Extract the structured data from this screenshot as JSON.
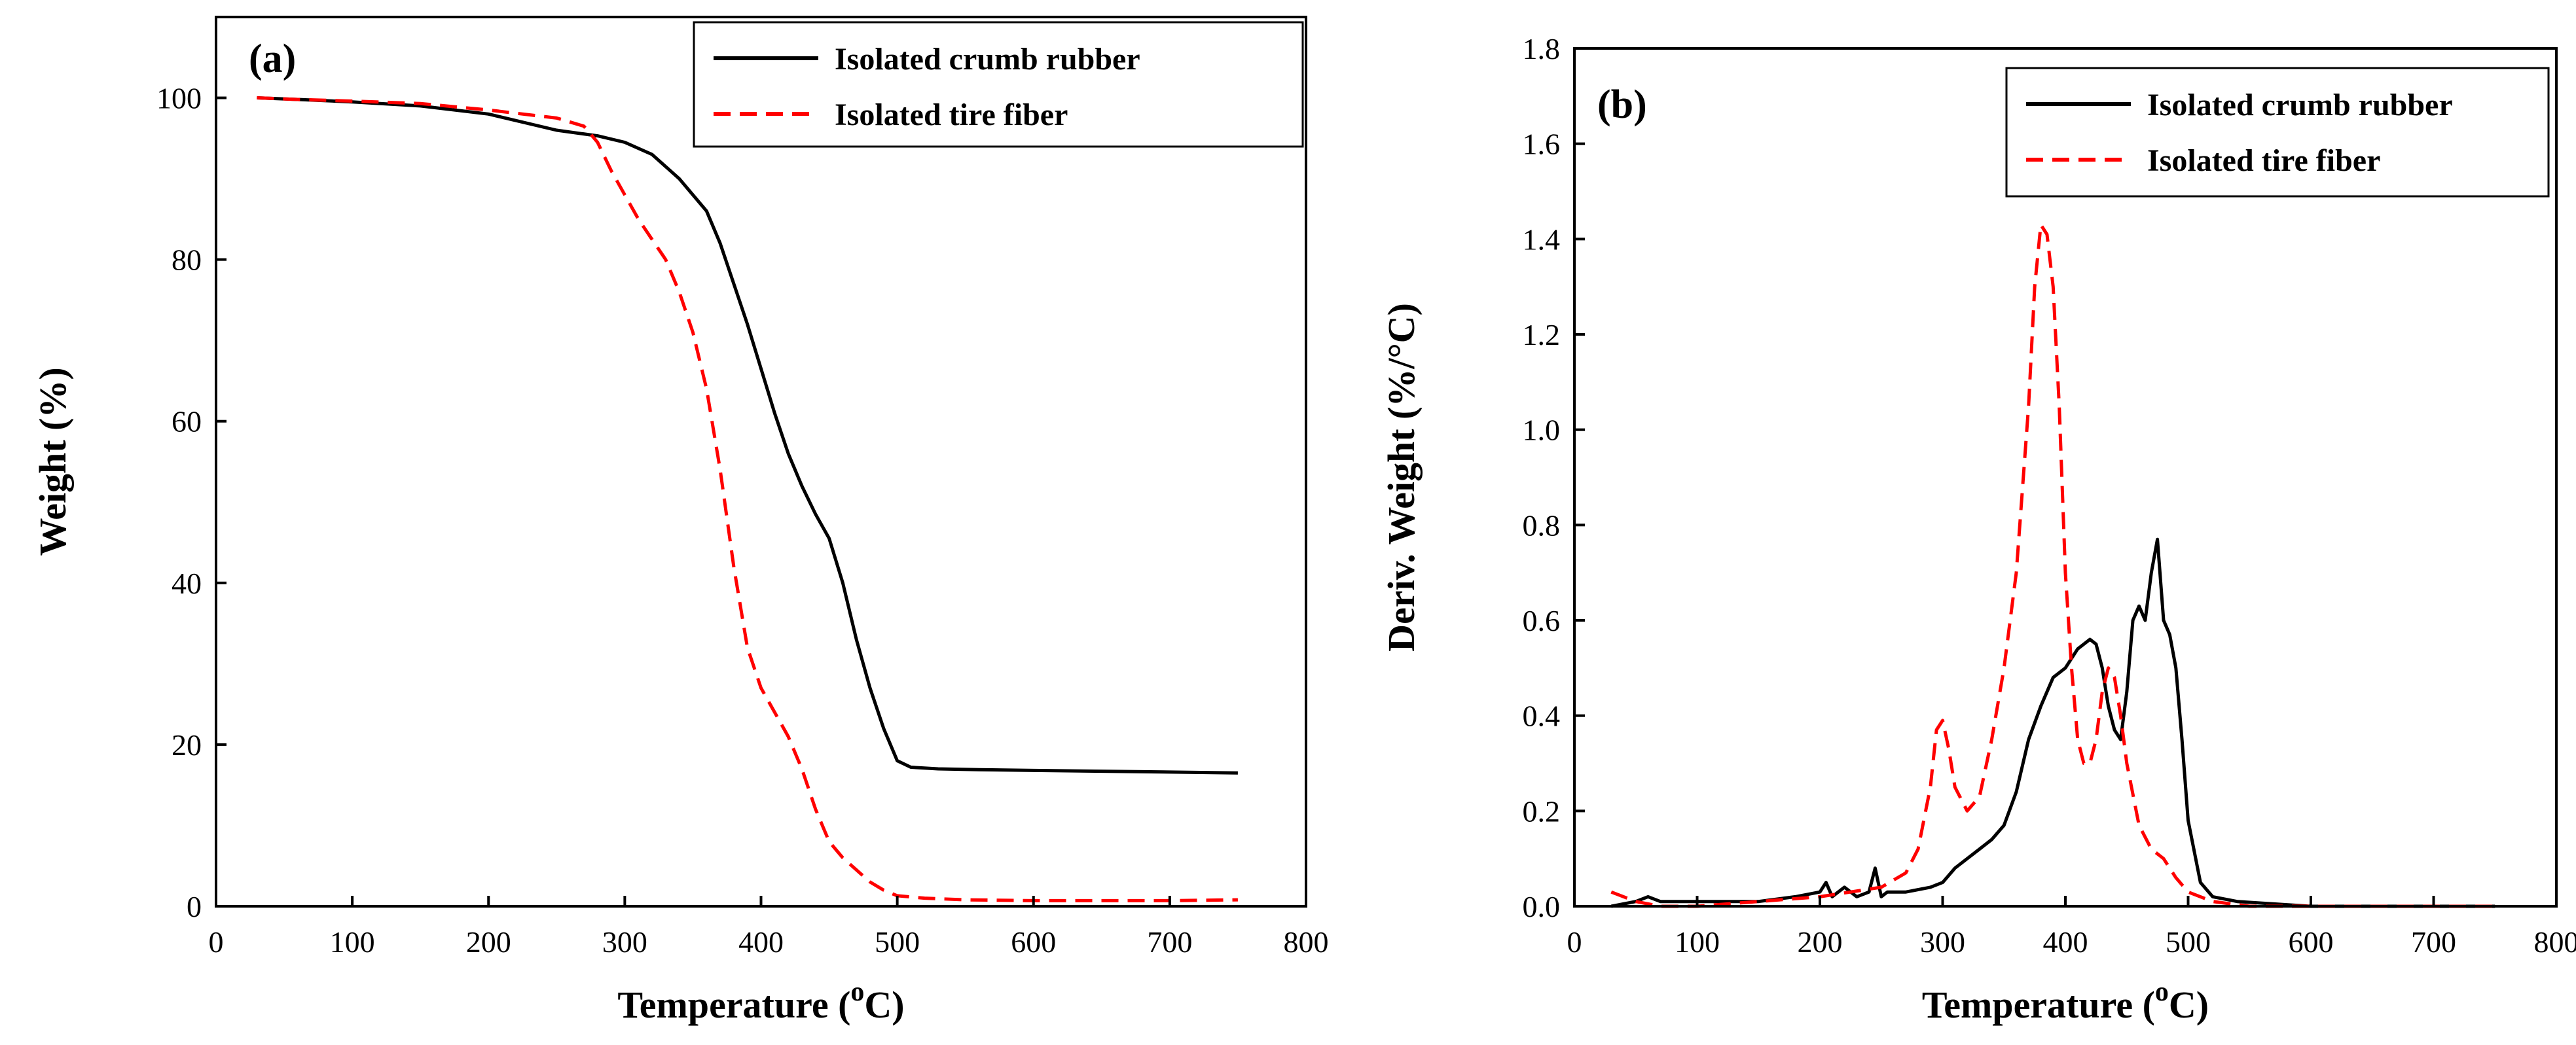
{
  "chart_data": [
    {
      "type": "line",
      "panel_label": "(a)",
      "xlabel_main": "Temperature (",
      "xlabel_sup": "o",
      "xlabel_end": "C)",
      "ylabel": "Weight (%)",
      "xlim": [
        0,
        800
      ],
      "ylim": [
        0,
        110
      ],
      "xticks": [
        0,
        100,
        200,
        300,
        400,
        500,
        600,
        700,
        800
      ],
      "yticks": [
        0,
        20,
        40,
        60,
        80,
        100
      ],
      "legend_position": "top-right",
      "series": [
        {
          "name": "Isolated crumb rubber",
          "color": "#000000",
          "style": "solid",
          "x": [
            30,
            60,
            100,
            150,
            200,
            250,
            280,
            300,
            320,
            340,
            360,
            370,
            380,
            390,
            400,
            410,
            420,
            430,
            440,
            450,
            460,
            470,
            480,
            490,
            500,
            510,
            530,
            560,
            600,
            700,
            750
          ],
          "y": [
            100,
            99.8,
            99.5,
            99,
            98,
            96,
            95.3,
            94.5,
            93,
            90,
            86,
            82,
            77,
            72,
            66.5,
            61,
            56,
            52,
            48.5,
            45.5,
            40,
            33,
            27,
            22,
            18,
            17.2,
            17,
            16.9,
            16.8,
            16.6,
            16.5
          ]
        },
        {
          "name": "Isolated tire fiber",
          "color": "#ff0000",
          "style": "dashed",
          "x": [
            30,
            60,
            100,
            150,
            200,
            250,
            270,
            280,
            290,
            300,
            310,
            320,
            330,
            340,
            350,
            360,
            370,
            380,
            390,
            400,
            410,
            420,
            430,
            440,
            450,
            460,
            470,
            480,
            490,
            500,
            520,
            550,
            600,
            700,
            750
          ],
          "y": [
            100,
            99.8,
            99.6,
            99.3,
            98.5,
            97.5,
            96.5,
            94.5,
            91,
            88,
            85,
            82.5,
            80,
            76,
            71,
            64,
            54,
            42,
            32,
            27,
            24,
            21,
            17,
            12,
            8,
            6,
            4.5,
            3,
            2,
            1.3,
            1,
            0.8,
            0.7,
            0.7,
            0.8
          ]
        }
      ]
    },
    {
      "type": "line",
      "panel_label": "(b)",
      "xlabel_main": "Temperature (",
      "xlabel_sup": "o",
      "xlabel_end": "C)",
      "ylabel": "Deriv. Weight (%/°C)",
      "xlim": [
        0,
        800
      ],
      "ylim": [
        0,
        1.8
      ],
      "xticks": [
        0,
        100,
        200,
        300,
        400,
        500,
        600,
        700,
        800
      ],
      "yticks": [
        0.0,
        0.2,
        0.4,
        0.6,
        0.8,
        1.0,
        1.2,
        1.4,
        1.6,
        1.8
      ],
      "legend_position": "top-right",
      "series": [
        {
          "name": "Isolated crumb rubber",
          "color": "#000000",
          "style": "solid",
          "x": [
            30,
            50,
            60,
            70,
            100,
            150,
            180,
            200,
            205,
            210,
            220,
            230,
            240,
            245,
            250,
            255,
            270,
            290,
            300,
            310,
            320,
            330,
            340,
            350,
            360,
            370,
            380,
            390,
            400,
            410,
            420,
            425,
            430,
            435,
            440,
            445,
            450,
            455,
            460,
            465,
            470,
            475,
            480,
            485,
            490,
            495,
            500,
            510,
            520,
            540,
            600,
            700,
            750
          ],
          "y": [
            0.0,
            0.01,
            0.02,
            0.01,
            0.01,
            0.01,
            0.02,
            0.03,
            0.05,
            0.02,
            0.04,
            0.02,
            0.03,
            0.08,
            0.02,
            0.03,
            0.03,
            0.04,
            0.05,
            0.08,
            0.1,
            0.12,
            0.14,
            0.17,
            0.24,
            0.35,
            0.42,
            0.48,
            0.5,
            0.54,
            0.56,
            0.55,
            0.5,
            0.42,
            0.37,
            0.35,
            0.45,
            0.6,
            0.63,
            0.6,
            0.7,
            0.77,
            0.6,
            0.57,
            0.5,
            0.35,
            0.18,
            0.05,
            0.02,
            0.01,
            0.0,
            0.0,
            0.0
          ]
        },
        {
          "name": "Isolated tire fiber",
          "color": "#ff0000",
          "style": "dashed",
          "x": [
            30,
            50,
            70,
            100,
            150,
            200,
            250,
            270,
            280,
            290,
            295,
            300,
            305,
            310,
            320,
            330,
            340,
            350,
            360,
            370,
            375,
            380,
            385,
            390,
            395,
            400,
            405,
            410,
            415,
            420,
            425,
            430,
            435,
            440,
            445,
            450,
            460,
            470,
            480,
            490,
            500,
            520,
            550,
            600,
            700,
            750
          ],
          "y": [
            0.03,
            0.01,
            0.0,
            0.0,
            0.01,
            0.02,
            0.04,
            0.07,
            0.12,
            0.25,
            0.37,
            0.39,
            0.33,
            0.25,
            0.2,
            0.23,
            0.35,
            0.5,
            0.7,
            1.05,
            1.3,
            1.43,
            1.41,
            1.3,
            1.05,
            0.7,
            0.5,
            0.35,
            0.3,
            0.3,
            0.35,
            0.45,
            0.5,
            0.48,
            0.4,
            0.3,
            0.17,
            0.12,
            0.1,
            0.06,
            0.03,
            0.01,
            0.0,
            0.0,
            0.0,
            0.0
          ]
        }
      ]
    }
  ]
}
